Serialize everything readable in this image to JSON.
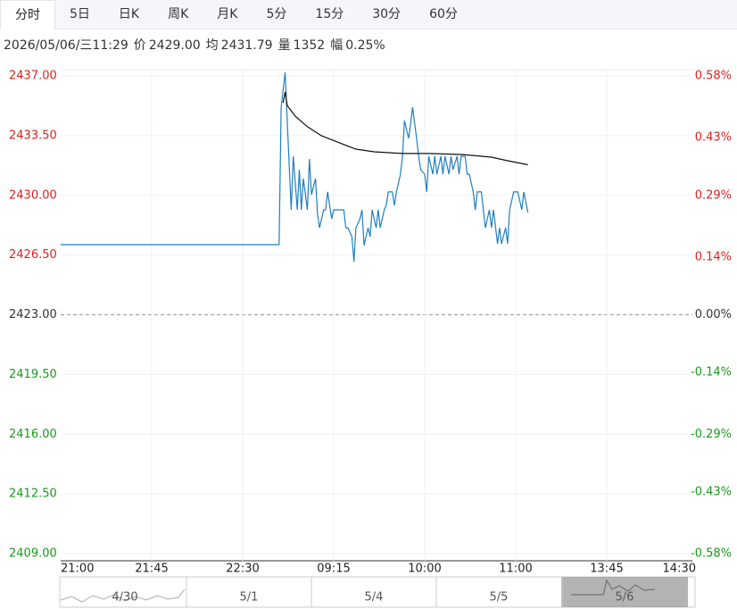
{
  "tabs": [
    "分时",
    "5日",
    "日K",
    "周K",
    "月K",
    "5分",
    "15分",
    "30分",
    "60分"
  ],
  "info": {
    "time": "2026/05/06/三11:29",
    "items": [
      {
        "label": "价",
        "value": "2429.00"
      },
      {
        "label": "均",
        "value": "2431.79"
      },
      {
        "label": "量",
        "value": "1352"
      },
      {
        "label": "幅",
        "value": "0.25%"
      }
    ]
  },
  "chart_data": {
    "type": "line",
    "xlim": [
      0,
      315
    ],
    "xticks": [
      {
        "value": 0,
        "label": "21:00"
      },
      {
        "value": 45,
        "label": "21:45"
      },
      {
        "value": 90,
        "label": "22:30"
      },
      {
        "value": 135,
        "label": "09:15"
      },
      {
        "value": 180,
        "label": "10:00"
      },
      {
        "value": 225,
        "label": "11:00"
      },
      {
        "value": 270,
        "label": "13:45"
      },
      {
        "value": 315,
        "label": "14:30"
      }
    ],
    "ylim": [
      2409,
      2437
    ],
    "yticks": [
      {
        "value": 2437,
        "label": "2437.00"
      },
      {
        "value": 2433.5,
        "label": "2433.50"
      },
      {
        "value": 2430,
        "label": "2430.00"
      },
      {
        "value": 2426.5,
        "label": "2426.50"
      },
      {
        "value": 2423,
        "label": "2423.00"
      },
      {
        "value": 2419.5,
        "label": "2419.50"
      },
      {
        "value": 2416,
        "label": "2416.00"
      },
      {
        "value": 2412.5,
        "label": "2412.50"
      },
      {
        "value": 2409,
        "label": "2409.00"
      }
    ],
    "y2lim": [
      -0.58,
      0.58
    ],
    "y2ticks": [
      {
        "value": 0.58,
        "label": "0.58%"
      },
      {
        "value": 0.43,
        "label": "0.43%"
      },
      {
        "value": 0.29,
        "label": "0.29%"
      },
      {
        "value": 0.14,
        "label": "0.14%"
      },
      {
        "value": 0,
        "label": "0.00%"
      },
      {
        "value": -0.14,
        "label": "-0.14%"
      },
      {
        "value": -0.29,
        "label": "-0.29%"
      },
      {
        "value": -0.43,
        "label": "-0.43%"
      },
      {
        "value": -0.58,
        "label": "-0.58%"
      }
    ],
    "up_color": "#e0201c",
    "down_color": "#1a9a1a",
    "flat_color": "#333333",
    "series": [
      {
        "color": "#1f7fc0",
        "x": [
          0,
          108,
          109,
          111,
          112,
          114,
          115,
          117,
          118,
          119,
          120,
          122,
          123,
          124,
          126,
          127,
          128,
          130,
          131,
          132,
          134,
          135,
          140,
          141,
          142,
          144,
          145,
          146,
          148,
          149,
          150,
          152,
          153,
          154,
          156,
          157,
          158,
          160,
          161,
          162,
          164,
          165,
          166,
          168,
          169,
          170,
          172,
          173,
          174,
          176,
          177,
          178,
          180,
          181,
          182,
          184,
          185,
          186,
          188,
          189,
          190,
          192,
          193,
          194,
          196,
          197,
          198,
          200,
          201,
          202,
          204,
          205,
          206,
          208,
          209,
          210,
          212,
          213,
          214,
          216,
          217,
          218,
          220,
          221,
          222,
          224,
          225,
          226,
          228,
          229,
          231
        ],
        "values": [
          2427.11,
          2427.11,
          2435.17,
          2437.2,
          2434.38,
          2429.15,
          2432.29,
          2429.15,
          2431.5,
          2429.15,
          2430.98,
          2429.15,
          2432.13,
          2430.04,
          2430.98,
          2428.89,
          2428.1,
          2429.15,
          2429.15,
          2430.2,
          2428.63,
          2429.15,
          2429.15,
          2428.1,
          2428.1,
          2427.58,
          2426.11,
          2428.1,
          2428.63,
          2429.15,
          2427.06,
          2428.1,
          2427.58,
          2429.15,
          2428.1,
          2429.15,
          2428.1,
          2429.15,
          2429.41,
          2430.2,
          2430.2,
          2429.41,
          2430.2,
          2431.24,
          2432.29,
          2434.38,
          2433.34,
          2434.12,
          2435.17,
          2433.34,
          2432.29,
          2431.5,
          2431.24,
          2430.2,
          2432.29,
          2431.24,
          2432.29,
          2431.24,
          2432.29,
          2431.24,
          2432.29,
          2431.24,
          2432.29,
          2431.5,
          2432.29,
          2431.24,
          2432.29,
          2432.29,
          2431.24,
          2431.24,
          2430.2,
          2429.15,
          2430.2,
          2430.2,
          2429.15,
          2428.1,
          2429.15,
          2428.1,
          2429.15,
          2427.16,
          2428.1,
          2427.16,
          2428.1,
          2427.16,
          2429.15,
          2430.2,
          2430.2,
          2430.2,
          2429.15,
          2430.2,
          2429.0
        ]
      },
      {
        "color": "#111111",
        "x": [
          110,
          111,
          112,
          116,
          122,
          129,
          138,
          146,
          155,
          169,
          182,
          199,
          213,
          221,
          231
        ],
        "values": [
          2435.43,
          2436.06,
          2435.27,
          2434.64,
          2434.02,
          2433.49,
          2433.07,
          2432.71,
          2432.55,
          2432.45,
          2432.45,
          2432.39,
          2432.24,
          2432.03,
          2431.79
        ]
      }
    ]
  },
  "navigator": [
    "4/30",
    "5/1",
    "5/4",
    "5/5",
    "5/6"
  ]
}
